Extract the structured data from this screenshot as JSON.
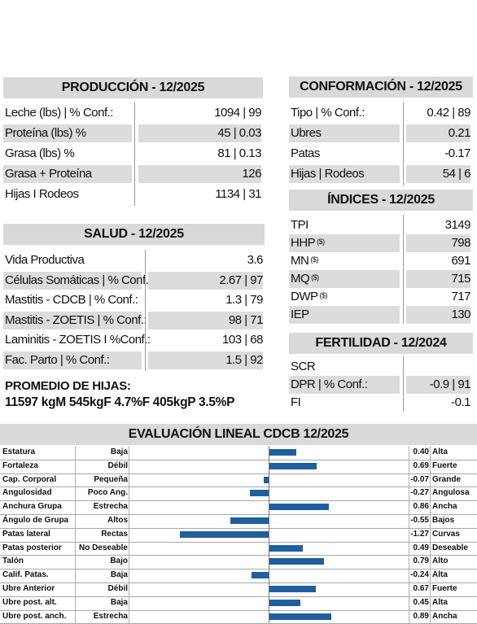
{
  "produccion": {
    "title": "PRODUCCIÓN - 12/2025",
    "rows": [
      {
        "label": "Leche (lbs) | % Conf.:",
        "value": "1094 | 99"
      },
      {
        "label": "Proteína (lbs) %",
        "value": "45 | 0.03"
      },
      {
        "label": "Grasa (lbs) %",
        "value": "81 | 0.13"
      },
      {
        "label": "Grasa + Proteína",
        "value": "126"
      },
      {
        "label": "Hijas I Rodeos",
        "value": "1134 | 31"
      }
    ]
  },
  "salud": {
    "title": "SALUD - 12/2025",
    "rows": [
      {
        "label": "Vida Productiva",
        "value": "3.6"
      },
      {
        "label": "Células Somáticas | % Conf.:",
        "value": "2.67 | 97"
      },
      {
        "label": "Mastitis - CDCB | % Conf.:",
        "value": "1.3 | 79"
      },
      {
        "label": "Mastitis - ZOETIS | % Conf.:",
        "value": "98 | 71"
      },
      {
        "label": "Laminitis - ZOETIS I %Conf.:",
        "value": "103  | 68"
      },
      {
        "label": "Fac. Parto | % Conf.:",
        "value": "1.5 | 92"
      }
    ]
  },
  "promedio": {
    "title": "PROMEDIO DE HIJAS:",
    "text": "11597 kgM 545kgF 4.7%F 405kgP 3.5%P"
  },
  "conformacion": {
    "title": "CONFORMACIÓN - 12/2025",
    "rows": [
      {
        "label": "Tipo |  % Conf.:",
        "value": "0.42 | 89"
      },
      {
        "label": "Ubres",
        "value": "0.21"
      },
      {
        "label": "Patas",
        "value": "-0.17"
      },
      {
        "label": "Hijas | Rodeos",
        "value": "54 | 6"
      }
    ]
  },
  "indices": {
    "title": "ÍNDICES - 12/2025",
    "rows": [
      {
        "label": "TPI",
        "sup": "",
        "value": "3149"
      },
      {
        "label": "HHP",
        "sup": "($)",
        "value": "798"
      },
      {
        "label": "MN",
        "sup": "($)",
        "value": "691"
      },
      {
        "label": "MQ",
        "sup": "($)",
        "value": "715"
      },
      {
        "label": "DWP",
        "sup": "($)",
        "value": "717"
      },
      {
        "label": "IEP",
        "sup": "",
        "value": "130"
      }
    ]
  },
  "fertilidad": {
    "title": "FERTILIDAD - 12/2024",
    "rows": [
      {
        "label": "SCR",
        "value": ""
      },
      {
        "label": "DPR | % Conf.:",
        "value": "-0.9 | 91"
      },
      {
        "label": "FI",
        "value": "-0.1"
      }
    ]
  },
  "evaluacion": {
    "title": "EVALUACIÓN LINEAL CDCB 12/2025",
    "bar_color": "#1f5f9e",
    "scale": [
      -2,
      2
    ],
    "rows": [
      {
        "trait": "Estatura",
        "low": "Baja",
        "value": 0.4,
        "value_text": "0.40",
        "high": "Alta"
      },
      {
        "trait": "Fortaleza",
        "low": "Débil",
        "value": 0.69,
        "value_text": "0.69",
        "high": "Fuerte"
      },
      {
        "trait": "Cap. Corporal",
        "low": "Pequeña",
        "value": -0.07,
        "value_text": "-0.07",
        "high": "Grande"
      },
      {
        "trait": "Angulosidad",
        "low": "Poco Ang.",
        "value": -0.27,
        "value_text": "-0.27",
        "high": "Angulosa"
      },
      {
        "trait": "Anchura Grupa",
        "low": "Estrecha",
        "value": 0.86,
        "value_text": "0.86",
        "high": "Ancha"
      },
      {
        "trait": "Ángulo de Grupa",
        "low": "Altos",
        "value": -0.55,
        "value_text": "-0.55",
        "high": "Bajos"
      },
      {
        "trait": "Patas lateral",
        "low": "Rectas",
        "value": -1.27,
        "value_text": "-1.27",
        "high": "Curvas"
      },
      {
        "trait": "Patas posterior",
        "low": "No Deseable",
        "value": 0.49,
        "value_text": "0.49",
        "high": "Deseable"
      },
      {
        "trait": "Talón",
        "low": "Bajo",
        "value": 0.79,
        "value_text": "0.79",
        "high": "Alto"
      },
      {
        "trait": "Calif. Patas.",
        "low": "Baja",
        "value": -0.24,
        "value_text": "-0.24",
        "high": "Alta"
      },
      {
        "trait": "Ubre Anterior",
        "low": "Débil",
        "value": 0.67,
        "value_text": "0.67",
        "high": "Fuerte"
      },
      {
        "trait": "Ubre post. alt.",
        "low": "Baja",
        "value": 0.45,
        "value_text": "0.45",
        "high": "Alta"
      },
      {
        "trait": "Ubre post. anch.",
        "low": "Estrecha",
        "value": 0.89,
        "value_text": "0.89",
        "high": "Ancha"
      }
    ]
  }
}
